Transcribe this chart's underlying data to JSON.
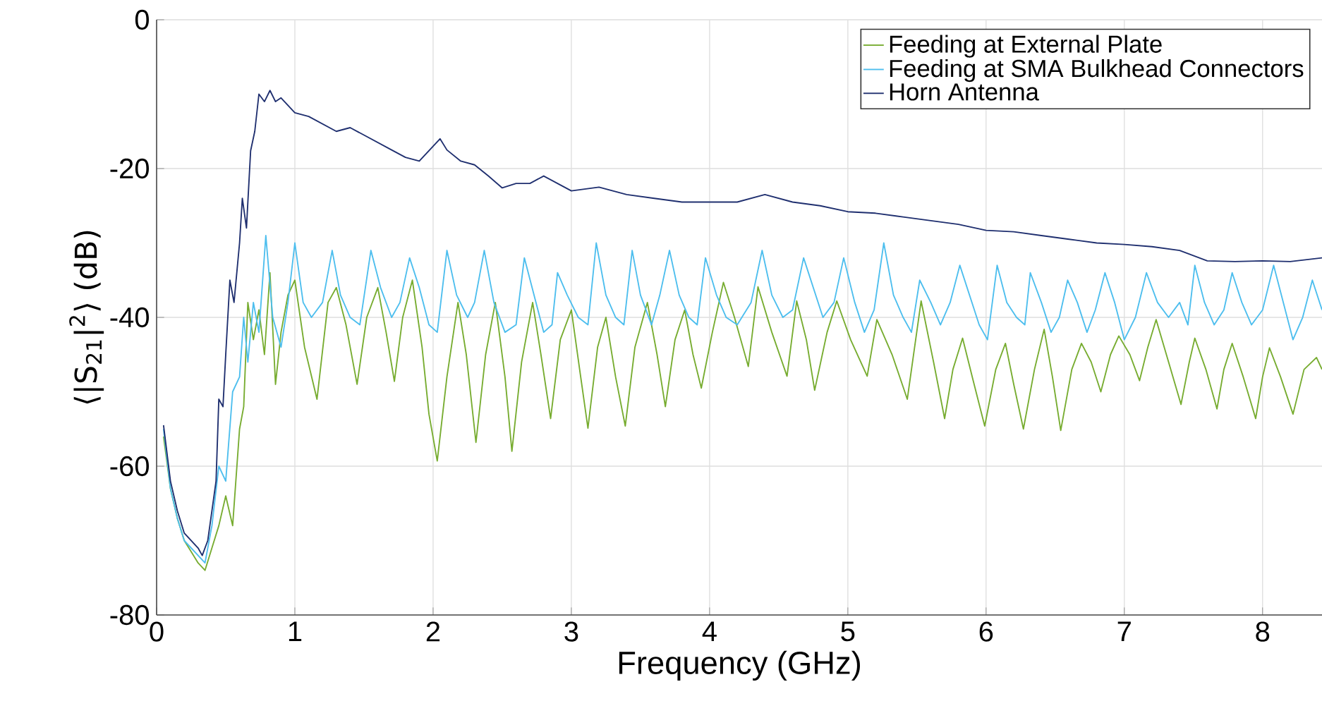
{
  "chart_data": {
    "type": "line",
    "xlabel": "Frequency (GHz)",
    "ylabel": "⟨|S$_{21}$|$^{2}$⟩ (dB)",
    "xlim": [
      0,
      8.43
    ],
    "ylim": [
      -80,
      0
    ],
    "xticks": [
      0,
      1,
      2,
      3,
      4,
      5,
      6,
      7,
      8
    ],
    "yticks": [
      -80,
      -60,
      -40,
      -20,
      0
    ],
    "grid": true,
    "legend": "top right",
    "series": [
      {
        "name": "Feeding at External Plate",
        "color": "#77ac30",
        "x": [
          0.05,
          0.1,
          0.15,
          0.2,
          0.25,
          0.3,
          0.35,
          0.4,
          0.45,
          0.5,
          0.55,
          0.6,
          0.63,
          0.66,
          0.7,
          0.74,
          0.78,
          0.82,
          0.86,
          0.9,
          0.95,
          1.0,
          1.07,
          1.16,
          1.24,
          1.3,
          1.37,
          1.45,
          1.52,
          1.6,
          1.66,
          1.72,
          1.78,
          1.85,
          1.92,
          1.97,
          2.03,
          2.1,
          2.18,
          2.24,
          2.31,
          2.38,
          2.45,
          2.52,
          2.57,
          2.64,
          2.72,
          2.78,
          2.85,
          2.92,
          3.0,
          3.06,
          3.12,
          3.19,
          3.25,
          3.32,
          3.39,
          3.46,
          3.55,
          3.62,
          3.68,
          3.75,
          3.82,
          3.88,
          3.94,
          4.02,
          4.1,
          4.18,
          4.28,
          4.35,
          4.45,
          4.56,
          4.63,
          4.7,
          4.76,
          4.85,
          4.92,
          5.02,
          5.14,
          5.21,
          5.32,
          5.43,
          5.53,
          5.62,
          5.7,
          5.76,
          5.83,
          5.9,
          5.99,
          6.07,
          6.14,
          6.2,
          6.27,
          6.35,
          6.42,
          6.48,
          6.54,
          6.62,
          6.69,
          6.76,
          6.83,
          6.9,
          6.96,
          7.04,
          7.11,
          7.17,
          7.23,
          7.32,
          7.41,
          7.47,
          7.51,
          7.59,
          7.67,
          7.72,
          7.78,
          7.86,
          7.95,
          8.0,
          8.05,
          8.13,
          8.22,
          8.3,
          8.39,
          8.43
        ],
        "values": [
          -56,
          -63,
          -67,
          -70,
          -71.5,
          -73,
          -74,
          -71,
          -68,
          -64,
          -68,
          -55,
          -52,
          -38,
          -43,
          -39,
          -45,
          -34,
          -49,
          -42,
          -37,
          -35,
          -44,
          -51,
          -38,
          -36,
          -41,
          -49,
          -40,
          -36,
          -42,
          -48.6,
          -40,
          -35,
          -44,
          -53,
          -59.3,
          -48,
          -38,
          -45,
          -56.8,
          -45,
          -38,
          -48,
          -58,
          -46,
          -38,
          -45,
          -53.6,
          -43,
          -39,
          -47,
          -54.9,
          -44,
          -40,
          -48,
          -54.6,
          -44,
          -38,
          -45,
          -52,
          -43,
          -39,
          -45,
          -49.5,
          -42,
          -35.3,
          -40,
          -46.6,
          -35.9,
          -42,
          -47.9,
          -37.8,
          -43,
          -49.8,
          -42,
          -37.8,
          -43,
          -47.9,
          -40.3,
          -45,
          -51,
          -37.8,
          -46,
          -53.6,
          -47,
          -42.8,
          -48,
          -54.6,
          -47,
          -43.5,
          -49,
          -55,
          -47,
          -41.6,
          -48,
          -55.2,
          -47,
          -43.5,
          -46,
          -50,
          -45,
          -42.5,
          -45,
          -48.5,
          -44,
          -40.3,
          -46,
          -51.7,
          -46,
          -42.8,
          -47,
          -52.3,
          -47,
          -43.5,
          -48,
          -53.6,
          -48,
          -44.1,
          -48,
          -53,
          -47,
          -45.4,
          -47
        ]
      },
      {
        "name": "Feeding at SMA Bulkhead Connectors",
        "color": "#4dbeee",
        "x": [
          0.05,
          0.1,
          0.15,
          0.2,
          0.25,
          0.3,
          0.35,
          0.4,
          0.45,
          0.5,
          0.55,
          0.6,
          0.63,
          0.66,
          0.7,
          0.74,
          0.79,
          0.84,
          0.9,
          0.95,
          1.0,
          1.06,
          1.12,
          1.2,
          1.27,
          1.33,
          1.4,
          1.47,
          1.55,
          1.62,
          1.7,
          1.76,
          1.83,
          1.9,
          1.97,
          2.03,
          2.1,
          2.17,
          2.25,
          2.3,
          2.37,
          2.44,
          2.52,
          2.6,
          2.66,
          2.73,
          2.8,
          2.86,
          2.9,
          2.97,
          3.05,
          3.12,
          3.18,
          3.25,
          3.32,
          3.38,
          3.44,
          3.5,
          3.58,
          3.64,
          3.71,
          3.78,
          3.85,
          3.91,
          3.97,
          4.05,
          4.12,
          4.2,
          4.3,
          4.38,
          4.45,
          4.53,
          4.6,
          4.68,
          4.75,
          4.82,
          4.9,
          4.97,
          5.05,
          5.12,
          5.19,
          5.26,
          5.33,
          5.4,
          5.46,
          5.52,
          5.6,
          5.67,
          5.74,
          5.81,
          5.88,
          5.95,
          6.01,
          6.08,
          6.15,
          6.22,
          6.28,
          6.32,
          6.4,
          6.47,
          6.53,
          6.59,
          6.66,
          6.73,
          6.79,
          6.86,
          6.93,
          7.0,
          7.08,
          7.16,
          7.24,
          7.32,
          7.4,
          7.46,
          7.51,
          7.58,
          7.65,
          7.72,
          7.78,
          7.85,
          7.92,
          8.0,
          8.08,
          8.15,
          8.22,
          8.29,
          8.36,
          8.43
        ],
        "values": [
          -55,
          -63,
          -67,
          -70,
          -71,
          -72,
          -73,
          -68,
          -60,
          -62,
          -50,
          -48,
          -40,
          -46,
          -38,
          -42,
          -29,
          -40,
          -44,
          -38,
          -30,
          -38,
          -40,
          -38,
          -31,
          -37,
          -40,
          -41,
          -31,
          -36,
          -40,
          -38,
          -32,
          -36,
          -41,
          -42,
          -31,
          -37,
          -40,
          -38,
          -31,
          -38,
          -42,
          -41,
          -32,
          -37,
          -42,
          -41,
          -34,
          -37,
          -40,
          -41,
          -30,
          -37,
          -40,
          -41,
          -31,
          -37,
          -41,
          -37,
          -31,
          -37,
          -40,
          -41,
          -32,
          -37,
          -40,
          -41,
          -38,
          -31,
          -37,
          -40,
          -39,
          -32,
          -36,
          -40,
          -38,
          -32,
          -38,
          -42,
          -39,
          -30,
          -37,
          -40,
          -42,
          -35,
          -38,
          -41,
          -38,
          -33,
          -37,
          -41,
          -43,
          -33,
          -38,
          -40,
          -41,
          -34,
          -38,
          -42,
          -40,
          -35,
          -38,
          -42,
          -39,
          -34,
          -38,
          -43,
          -40,
          -34,
          -38,
          -40,
          -38,
          -41,
          -33,
          -38,
          -41,
          -39,
          -34,
          -38,
          -41,
          -39,
          -33,
          -38,
          -43,
          -40,
          -35,
          -39
        ]
      },
      {
        "name": "Horn Antenna",
        "color": "#1f2f6f",
        "x": [
          0.05,
          0.1,
          0.15,
          0.2,
          0.25,
          0.3,
          0.33,
          0.37,
          0.4,
          0.43,
          0.45,
          0.48,
          0.5,
          0.53,
          0.56,
          0.6,
          0.62,
          0.65,
          0.68,
          0.71,
          0.74,
          0.78,
          0.82,
          0.86,
          0.9,
          0.95,
          1.0,
          1.1,
          1.2,
          1.3,
          1.4,
          1.5,
          1.6,
          1.7,
          1.8,
          1.9,
          2.0,
          2.05,
          2.1,
          2.2,
          2.3,
          2.4,
          2.5,
          2.6,
          2.7,
          2.8,
          2.9,
          3.0,
          3.2,
          3.4,
          3.6,
          3.8,
          4.0,
          4.2,
          4.4,
          4.6,
          4.8,
          5.0,
          5.2,
          5.4,
          5.6,
          5.8,
          6.0,
          6.2,
          6.4,
          6.6,
          6.8,
          7.0,
          7.2,
          7.4,
          7.6,
          7.8,
          8.0,
          8.2,
          8.43
        ],
        "values": [
          -54.5,
          -62,
          -66,
          -69,
          -70,
          -71,
          -72,
          -70,
          -66,
          -62,
          -51,
          -52,
          -45,
          -35,
          -38,
          -30,
          -24,
          -28,
          -17.6,
          -15,
          -10,
          -11,
          -9.5,
          -11,
          -10.5,
          -11.5,
          -12.5,
          -13,
          -14,
          -15,
          -14.5,
          -15.5,
          -16.5,
          -17.5,
          -18.5,
          -19,
          -17,
          -16,
          -17.5,
          -19,
          -19.5,
          -21,
          -22.6,
          -22,
          -22,
          -21,
          -22,
          -23,
          -22.5,
          -23.5,
          -24,
          -24.5,
          -24.5,
          -24.5,
          -23.5,
          -24.5,
          -25,
          -25.8,
          -26,
          -26.5,
          -27,
          -27.5,
          -28.3,
          -28.5,
          -29,
          -29.5,
          -30,
          -30.2,
          -30.5,
          -31,
          -32.4,
          -32.5,
          -32.4,
          -32.5,
          -32
        ]
      }
    ]
  }
}
